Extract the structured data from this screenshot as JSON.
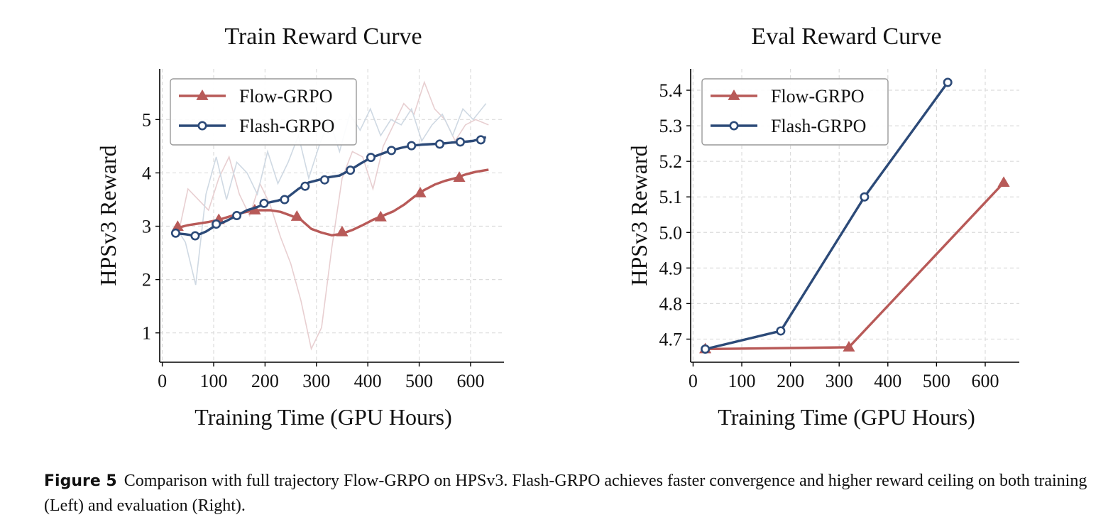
{
  "colors": {
    "flow": "#b85a58",
    "flash": "#2c4a78",
    "flow_raw": "#e8cfd1",
    "flash_raw": "#cfd9e3",
    "grid": "#dcdcdc"
  },
  "caption": {
    "label": "Figure 5",
    "text": "Comparison with full trajectory Flow-GRPO on HPSv3. Flash-GRPO achieves faster convergence and higher reward ceiling on both training (Left) and evaluation (Right)."
  },
  "chart_data": [
    {
      "type": "line",
      "title": "Train Reward Curve",
      "xlabel": "Training Time (GPU Hours)",
      "ylabel": "HPSv3 Reward",
      "xlim": [
        -5,
        665
      ],
      "ylim": [
        0.45,
        5.95
      ],
      "xticks": [
        0,
        100,
        200,
        300,
        400,
        500,
        600
      ],
      "yticks": [
        1,
        2,
        3,
        4,
        5
      ],
      "grid": true,
      "legend": "top-left",
      "series": [
        {
          "name": "Flow-GRPO",
          "marker": "triangle",
          "x": [
            30,
            50,
            70,
            90,
            110,
            130,
            150,
            170,
            190,
            210,
            230,
            250,
            270,
            290,
            310,
            330,
            350,
            370,
            390,
            410,
            430,
            450,
            470,
            490,
            510,
            530,
            550,
            570,
            590,
            610,
            635
          ],
          "values": [
            2.97,
            3.02,
            3.05,
            3.08,
            3.12,
            3.18,
            3.24,
            3.28,
            3.3,
            3.3,
            3.27,
            3.2,
            3.12,
            2.95,
            2.88,
            2.83,
            2.86,
            2.93,
            3.02,
            3.12,
            3.2,
            3.28,
            3.4,
            3.55,
            3.68,
            3.78,
            3.85,
            3.9,
            3.97,
            4.02,
            4.06
          ],
          "marker_x": [
            30,
            110,
            180,
            262,
            350,
            425,
            502,
            578
          ],
          "marker_values": [
            2.99,
            3.12,
            3.3,
            3.18,
            2.89,
            3.17,
            3.62,
            3.91
          ],
          "raw_x": [
            30,
            50,
            70,
            90,
            110,
            130,
            150,
            170,
            190,
            210,
            230,
            250,
            270,
            290,
            310,
            330,
            350,
            370,
            390,
            410,
            430,
            450,
            470,
            490,
            510,
            530,
            550,
            570,
            590,
            610,
            635
          ],
          "raw_values": [
            2.8,
            3.7,
            3.5,
            3.3,
            3.9,
            4.3,
            3.6,
            3.2,
            3.8,
            3.4,
            2.8,
            2.3,
            1.6,
            0.7,
            1.1,
            2.6,
            3.9,
            4.4,
            4.3,
            3.7,
            4.5,
            4.9,
            5.3,
            5.1,
            5.7,
            5.2,
            5.0,
            4.6,
            4.9,
            5.0,
            4.9
          ]
        },
        {
          "name": "Flash-GRPO",
          "marker": "circle",
          "x": [
            25,
            45,
            65,
            85,
            105,
            125,
            145,
            165,
            185,
            205,
            225,
            245,
            265,
            285,
            305,
            325,
            345,
            365,
            385,
            405,
            425,
            445,
            465,
            485,
            505,
            525,
            545,
            565,
            585,
            605,
            630
          ],
          "values": [
            2.87,
            2.85,
            2.82,
            2.9,
            3.02,
            3.1,
            3.2,
            3.3,
            3.36,
            3.44,
            3.48,
            3.55,
            3.7,
            3.82,
            3.87,
            3.92,
            3.95,
            4.05,
            4.17,
            4.28,
            4.35,
            4.42,
            4.47,
            4.51,
            4.53,
            4.54,
            4.55,
            4.57,
            4.58,
            4.6,
            4.67
          ],
          "marker_x": [
            26,
            64,
            105,
            145,
            198,
            238,
            278,
            316,
            366,
            406,
            446,
            485,
            540,
            580,
            620
          ],
          "marker_values": [
            2.87,
            2.82,
            3.04,
            3.2,
            3.43,
            3.5,
            3.75,
            3.87,
            4.05,
            4.29,
            4.42,
            4.51,
            4.54,
            4.58,
            4.62
          ],
          "raw_x": [
            25,
            45,
            65,
            85,
            105,
            125,
            145,
            165,
            185,
            205,
            225,
            245,
            265,
            285,
            305,
            325,
            345,
            365,
            385,
            405,
            425,
            445,
            465,
            485,
            505,
            525,
            545,
            565,
            585,
            605,
            630
          ],
          "raw_values": [
            3.0,
            2.7,
            1.9,
            3.6,
            4.3,
            3.5,
            4.2,
            4.0,
            3.6,
            4.4,
            3.8,
            4.2,
            4.7,
            3.9,
            4.5,
            5.0,
            4.4,
            5.1,
            4.8,
            5.2,
            4.7,
            5.0,
            4.9,
            5.2,
            4.6,
            4.9,
            5.1,
            4.7,
            5.2,
            5.0,
            5.3
          ]
        }
      ]
    },
    {
      "type": "line",
      "title": "Eval Reward Curve",
      "xlabel": "Training Time (GPU Hours)",
      "ylabel": "HPSv3 Reward",
      "xlim": [
        -5,
        670
      ],
      "ylim": [
        4.635,
        5.46
      ],
      "xticks": [
        0,
        100,
        200,
        300,
        400,
        500,
        600
      ],
      "yticks": [
        4.7,
        4.8,
        4.9,
        5.0,
        5.1,
        5.2,
        5.3,
        5.4
      ],
      "grid": true,
      "legend": "top-left",
      "series": [
        {
          "name": "Flow-GRPO",
          "marker": "triangle",
          "x": [
            25,
            320,
            638
          ],
          "values": [
            4.672,
            4.677,
            5.14
          ]
        },
        {
          "name": "Flash-GRPO",
          "marker": "circle",
          "x": [
            25,
            180,
            352,
            523
          ],
          "values": [
            4.672,
            4.723,
            5.1,
            5.422
          ]
        }
      ]
    }
  ]
}
